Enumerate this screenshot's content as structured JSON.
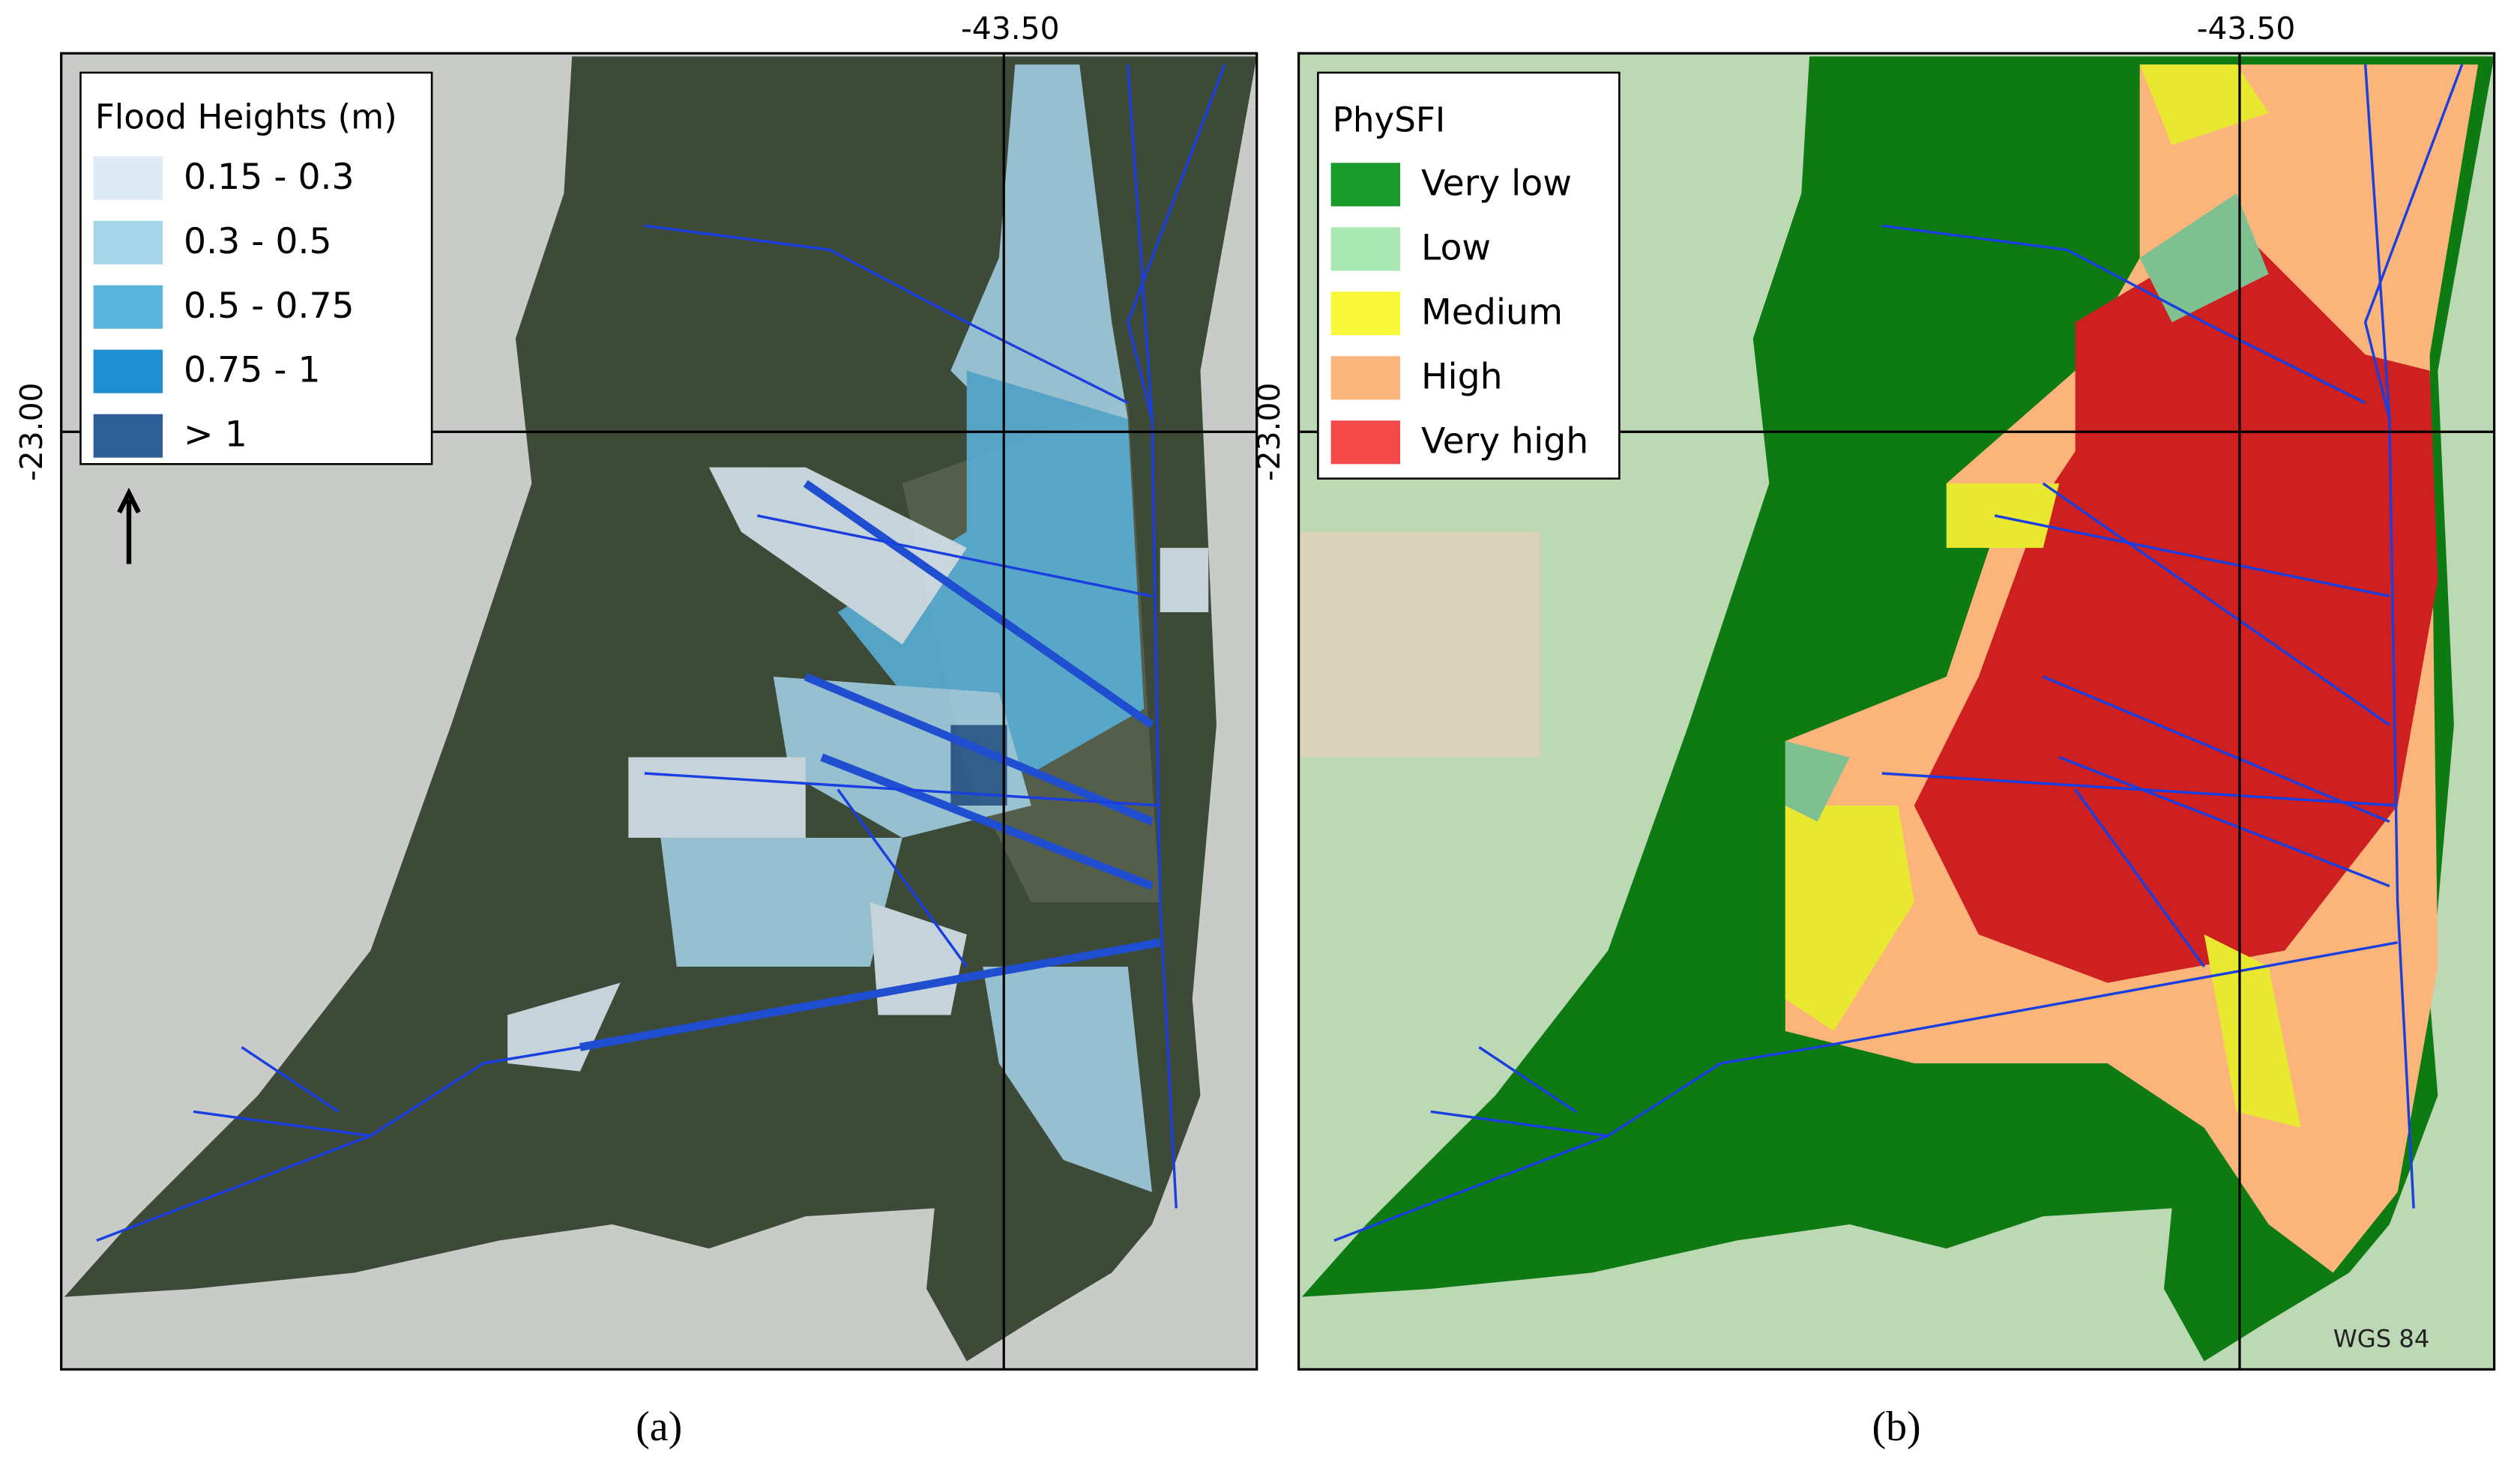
{
  "panels": [
    {
      "legend_title": "Flood Heights (m)",
      "legend_items": [
        {
          "label": "0.15 - 0.3",
          "color": "#deebf7"
        },
        {
          "label": "0.3 - 0.5",
          "color": "#a6d5ea"
        },
        {
          "label": "0.5 - 0.75",
          "color": "#5ab4de"
        },
        {
          "label": "0.75 - 1",
          "color": "#1f8fcf"
        },
        {
          "label": "> 1",
          "color": "#2e5f96"
        }
      ],
      "lon_label": "-43.50",
      "lat_label": "-23.00",
      "caption": "(a)"
    },
    {
      "legend_title": "PhySFI",
      "legend_items": [
        {
          "label": "Very low",
          "color": "#1a9a2a"
        },
        {
          "label": "Low",
          "color": "#a8e6b4"
        },
        {
          "label": "Medium",
          "color": "#f8f83a"
        },
        {
          "label": "High",
          "color": "#fbb57a"
        },
        {
          "label": "Very high",
          "color": "#f44a4a"
        }
      ],
      "lon_label": "-43.50",
      "lat_label": "-23.00",
      "caption": "(b)"
    }
  ],
  "crs_label": "WGS 84"
}
